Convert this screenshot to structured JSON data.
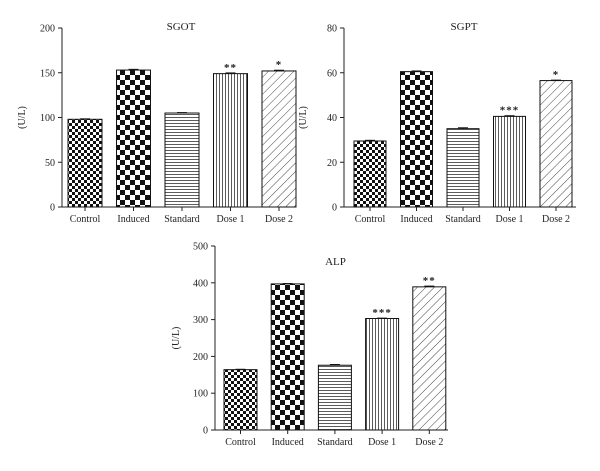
{
  "chart_data": [
    {
      "type": "bar",
      "title": "SGOT",
      "ylabel": "(U/L)",
      "categories": [
        "Control",
        "Induced",
        "Standard",
        "Dose 1",
        "Dose 2"
      ],
      "values": [
        98,
        153,
        105,
        149,
        152
      ],
      "errors": [
        0.5,
        0.8,
        0.5,
        0.8,
        0.8
      ],
      "annotations": [
        "",
        "",
        "",
        "**",
        "*"
      ],
      "patterns": [
        "smallcheck",
        "bigcheck",
        "hlines",
        "vlines",
        "diag"
      ],
      "ylim": [
        0,
        200
      ],
      "yticks": [
        0,
        50,
        100,
        150,
        200
      ]
    },
    {
      "type": "bar",
      "title": "SGPT",
      "ylabel": "(U/L)",
      "categories": [
        "Control",
        "Induced",
        "Standard",
        "Dose 1",
        "Dose 2"
      ],
      "values": [
        29.5,
        60.5,
        35,
        40.5,
        56.5
      ],
      "errors": [
        0.3,
        0.3,
        0.4,
        0.3,
        0.2
      ],
      "annotations": [
        "",
        "",
        "",
        "***",
        "*"
      ],
      "patterns": [
        "smallcheck",
        "bigcheck",
        "hlines",
        "vlines",
        "diag"
      ],
      "ylim": [
        0,
        80
      ],
      "yticks": [
        0,
        20,
        40,
        60,
        80
      ]
    },
    {
      "type": "bar",
      "title": "ALP",
      "ylabel": "(U/L)",
      "categories": [
        "Control",
        "Induced",
        "Standard",
        "Dose 1",
        "Dose 2"
      ],
      "values": [
        164,
        397,
        176,
        303,
        389
      ],
      "errors": [
        1,
        1,
        2,
        1,
        2
      ],
      "annotations": [
        "",
        "",
        "",
        "***",
        "**"
      ],
      "patterns": [
        "smallcheck",
        "bigcheck",
        "hlines",
        "vlines",
        "diag"
      ],
      "ylim": [
        0,
        500
      ],
      "yticks": [
        0,
        100,
        200,
        300,
        400,
        500
      ]
    }
  ]
}
